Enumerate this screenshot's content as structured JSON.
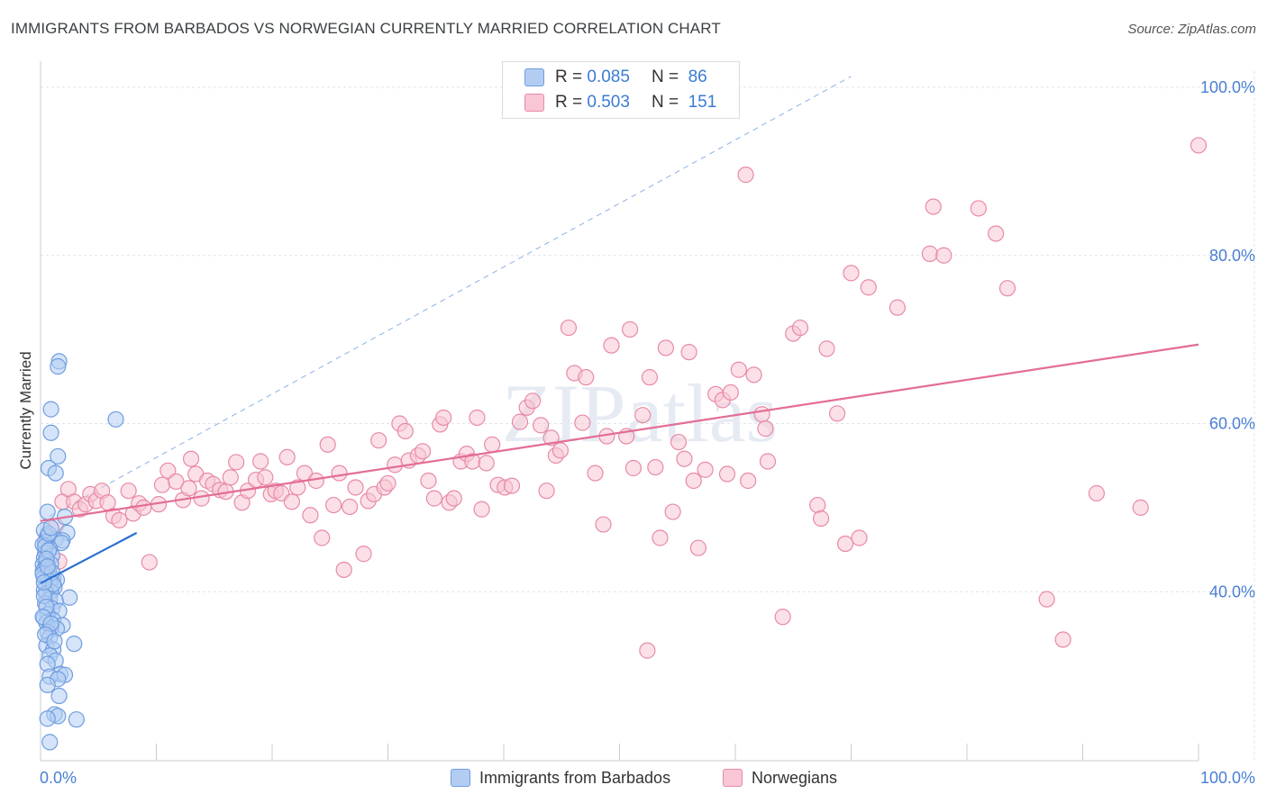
{
  "title": "IMMIGRANTS FROM BARBADOS VS NORWEGIAN CURRENTLY MARRIED CORRELATION CHART",
  "source": "Source: ZipAtlas.com",
  "watermark": "ZIPatlas",
  "legend_top": [
    {
      "r_label": "R =",
      "r_value": "0.085",
      "n_label": "N =",
      "n_value": "86",
      "color_fill": "#b3cdf2",
      "color_stroke": "#6f9de0"
    },
    {
      "r_label": "R =",
      "r_value": "0.503",
      "n_label": "N =",
      "n_value": "151",
      "color_fill": "#f8c6d4",
      "color_stroke": "#e88aa6"
    }
  ],
  "legend_bottom": [
    {
      "label": "Immigrants from Barbados",
      "color_fill": "#b3cdf2",
      "color_stroke": "#6f9de0"
    },
    {
      "label": "Norwegians",
      "color_fill": "#f8c6d4",
      "color_stroke": "#e88aa6"
    }
  ],
  "chart_data": {
    "type": "scatter",
    "title": "IMMIGRANTS FROM BARBADOS VS NORWEGIAN CURRENTLY MARRIED CORRELATION CHART",
    "xlabel": "",
    "ylabel": "Currently Married",
    "xlim": [
      0,
      100
    ],
    "ylim": [
      20,
      100
    ],
    "x_tick_labels": [
      "0.0%",
      "100.0%"
    ],
    "y_tick_labels": [
      "40.0%",
      "60.0%",
      "80.0%",
      "100.0%"
    ],
    "y_ticks": [
      40,
      60,
      80,
      100
    ],
    "grid": true,
    "series": [
      {
        "name": "Immigrants from Barbados",
        "color": "#6f9de0",
        "fill": "#b3cdf2",
        "trend": {
          "x": [
            0,
            8.3
          ],
          "y": [
            41.0,
            47.0
          ],
          "color": "#2a6fd1"
        },
        "points": [
          [
            1.6,
            67.4
          ],
          [
            1.5,
            66.8
          ],
          [
            0.9,
            61.7
          ],
          [
            6.5,
            60.5
          ],
          [
            0.9,
            58.9
          ],
          [
            1.5,
            56.1
          ],
          [
            0.7,
            54.7
          ],
          [
            1.3,
            54.1
          ],
          [
            0.6,
            49.5
          ],
          [
            2.1,
            48.9
          ],
          [
            0.3,
            47.3
          ],
          [
            2.3,
            47.0
          ],
          [
            0.6,
            46.6
          ],
          [
            1.3,
            46.2
          ],
          [
            1.9,
            46.1
          ],
          [
            0.4,
            45.9
          ],
          [
            1.8,
            45.8
          ],
          [
            0.2,
            45.6
          ],
          [
            0.8,
            45.1
          ],
          [
            0.4,
            44.6
          ],
          [
            1.0,
            44.3
          ],
          [
            0.3,
            44.0
          ],
          [
            0.5,
            43.6
          ],
          [
            0.9,
            43.3
          ],
          [
            0.2,
            43.2
          ],
          [
            0.4,
            42.9
          ],
          [
            0.7,
            42.6
          ],
          [
            0.2,
            42.4
          ],
          [
            0.6,
            42.0
          ],
          [
            0.3,
            41.7
          ],
          [
            1.1,
            41.6
          ],
          [
            1.4,
            41.4
          ],
          [
            0.8,
            41.2
          ],
          [
            0.5,
            40.8
          ],
          [
            1.2,
            40.5
          ],
          [
            0.3,
            40.2
          ],
          [
            0.9,
            40.0
          ],
          [
            0.5,
            39.8
          ],
          [
            2.5,
            39.3
          ],
          [
            0.8,
            39.1
          ],
          [
            1.3,
            38.9
          ],
          [
            0.4,
            38.6
          ],
          [
            1.0,
            38.0
          ],
          [
            1.6,
            37.7
          ],
          [
            0.6,
            37.3
          ],
          [
            0.3,
            36.9
          ],
          [
            1.1,
            36.6
          ],
          [
            0.5,
            36.3
          ],
          [
            1.9,
            36.0
          ],
          [
            0.9,
            35.7
          ],
          [
            1.4,
            35.6
          ],
          [
            0.6,
            35.2
          ],
          [
            0.8,
            34.6
          ],
          [
            2.9,
            33.8
          ],
          [
            0.5,
            33.6
          ],
          [
            1.1,
            33.1
          ],
          [
            0.8,
            32.4
          ],
          [
            1.3,
            31.8
          ],
          [
            0.6,
            31.4
          ],
          [
            1.7,
            30.2
          ],
          [
            2.1,
            30.1
          ],
          [
            0.8,
            29.9
          ],
          [
            1.5,
            29.6
          ],
          [
            0.6,
            28.9
          ],
          [
            1.6,
            27.6
          ],
          [
            1.2,
            25.4
          ],
          [
            1.5,
            25.2
          ],
          [
            3.1,
            24.8
          ],
          [
            0.6,
            24.9
          ],
          [
            0.8,
            22.1
          ],
          [
            0.4,
            45.4
          ],
          [
            0.7,
            44.9
          ],
          [
            0.2,
            42.1
          ],
          [
            1.0,
            42.3
          ],
          [
            0.3,
            39.5
          ],
          [
            0.5,
            38.2
          ],
          [
            0.2,
            37.0
          ],
          [
            0.9,
            36.2
          ],
          [
            0.4,
            34.9
          ],
          [
            1.2,
            34.1
          ],
          [
            0.7,
            46.9
          ],
          [
            0.5,
            43.9
          ],
          [
            1.1,
            40.9
          ],
          [
            0.3,
            41.1
          ],
          [
            0.6,
            43.0
          ],
          [
            0.9,
            47.6
          ]
        ]
      },
      {
        "name": "Norwegians",
        "color": "#e88aa6",
        "fill": "#f8c6d4",
        "trend": {
          "x": [
            0,
            100
          ],
          "y": [
            48.4,
            69.4
          ],
          "color": "#e36d96"
        },
        "points": [
          [
            0.5,
            46.4
          ],
          [
            1.3,
            47.8
          ],
          [
            1.6,
            43.6
          ],
          [
            1.9,
            50.7
          ],
          [
            2.4,
            52.2
          ],
          [
            2.9,
            50.7
          ],
          [
            3.4,
            49.8
          ],
          [
            3.9,
            50.4
          ],
          [
            4.3,
            51.6
          ],
          [
            4.8,
            50.8
          ],
          [
            5.3,
            52.0
          ],
          [
            5.8,
            50.6
          ],
          [
            6.3,
            49.0
          ],
          [
            6.8,
            48.5
          ],
          [
            7.6,
            52.0
          ],
          [
            8.0,
            49.3
          ],
          [
            8.5,
            50.5
          ],
          [
            8.9,
            50.0
          ],
          [
            9.4,
            43.5
          ],
          [
            10.2,
            50.4
          ],
          [
            10.5,
            52.7
          ],
          [
            11.0,
            54.4
          ],
          [
            11.7,
            53.1
          ],
          [
            12.3,
            50.9
          ],
          [
            12.8,
            52.3
          ],
          [
            13.0,
            55.8
          ],
          [
            13.4,
            54.0
          ],
          [
            13.9,
            51.1
          ],
          [
            14.4,
            53.2
          ],
          [
            14.9,
            52.8
          ],
          [
            15.5,
            52.1
          ],
          [
            16.0,
            51.9
          ],
          [
            16.4,
            53.6
          ],
          [
            16.9,
            55.4
          ],
          [
            17.4,
            50.6
          ],
          [
            17.9,
            52.0
          ],
          [
            18.6,
            53.3
          ],
          [
            19.0,
            55.5
          ],
          [
            19.4,
            53.6
          ],
          [
            19.9,
            51.6
          ],
          [
            20.3,
            52.0
          ],
          [
            20.8,
            51.7
          ],
          [
            21.3,
            56.0
          ],
          [
            21.7,
            50.7
          ],
          [
            22.2,
            52.4
          ],
          [
            22.8,
            54.1
          ],
          [
            23.3,
            49.1
          ],
          [
            23.8,
            53.2
          ],
          [
            24.3,
            46.4
          ],
          [
            24.8,
            57.5
          ],
          [
            25.3,
            50.3
          ],
          [
            25.8,
            54.1
          ],
          [
            26.2,
            42.6
          ],
          [
            26.7,
            50.1
          ],
          [
            27.2,
            52.4
          ],
          [
            27.9,
            44.5
          ],
          [
            28.3,
            50.8
          ],
          [
            28.8,
            51.6
          ],
          [
            29.2,
            58.0
          ],
          [
            29.7,
            52.4
          ],
          [
            30.0,
            52.9
          ],
          [
            30.6,
            55.1
          ],
          [
            31.0,
            60.0
          ],
          [
            31.5,
            59.1
          ],
          [
            31.8,
            55.6
          ],
          [
            32.6,
            56.2
          ],
          [
            33.0,
            56.7
          ],
          [
            34.0,
            51.1
          ],
          [
            34.5,
            59.9
          ],
          [
            34.8,
            60.7
          ],
          [
            35.3,
            50.6
          ],
          [
            35.7,
            51.1
          ],
          [
            36.3,
            55.5
          ],
          [
            36.8,
            56.4
          ],
          [
            37.3,
            55.5
          ],
          [
            37.7,
            60.7
          ],
          [
            38.1,
            49.8
          ],
          [
            38.5,
            55.3
          ],
          [
            39.0,
            57.5
          ],
          [
            39.5,
            52.7
          ],
          [
            40.1,
            52.4
          ],
          [
            40.7,
            52.6
          ],
          [
            41.4,
            60.2
          ],
          [
            42.0,
            61.9
          ],
          [
            42.5,
            62.7
          ],
          [
            43.2,
            59.8
          ],
          [
            43.7,
            52.0
          ],
          [
            44.1,
            58.3
          ],
          [
            44.5,
            56.2
          ],
          [
            44.9,
            56.8
          ],
          [
            45.6,
            71.4
          ],
          [
            46.1,
            66.0
          ],
          [
            46.8,
            60.1
          ],
          [
            47.1,
            65.5
          ],
          [
            47.9,
            54.1
          ],
          [
            48.6,
            48.0
          ],
          [
            48.9,
            58.5
          ],
          [
            49.3,
            69.3
          ],
          [
            50.6,
            58.5
          ],
          [
            50.9,
            71.2
          ],
          [
            51.2,
            54.7
          ],
          [
            52.4,
            33.0
          ],
          [
            52.6,
            65.5
          ],
          [
            53.1,
            54.8
          ],
          [
            53.5,
            46.4
          ],
          [
            54.0,
            69.0
          ],
          [
            54.6,
            49.5
          ],
          [
            55.1,
            57.8
          ],
          [
            55.6,
            55.8
          ],
          [
            56.0,
            68.5
          ],
          [
            56.4,
            53.2
          ],
          [
            56.8,
            45.2
          ],
          [
            57.4,
            54.5
          ],
          [
            58.3,
            63.5
          ],
          [
            58.9,
            62.8
          ],
          [
            59.3,
            54.0
          ],
          [
            59.6,
            63.7
          ],
          [
            60.3,
            66.4
          ],
          [
            60.9,
            89.6
          ],
          [
            61.1,
            53.2
          ],
          [
            61.6,
            65.8
          ],
          [
            62.3,
            61.1
          ],
          [
            62.6,
            59.4
          ],
          [
            62.8,
            55.5
          ],
          [
            64.1,
            37.0
          ],
          [
            65.0,
            70.7
          ],
          [
            65.6,
            71.4
          ],
          [
            67.1,
            50.3
          ],
          [
            67.4,
            48.7
          ],
          [
            67.9,
            68.9
          ],
          [
            68.8,
            61.2
          ],
          [
            69.5,
            45.7
          ],
          [
            70.0,
            77.9
          ],
          [
            70.7,
            46.4
          ],
          [
            71.5,
            76.2
          ],
          [
            74.0,
            73.8
          ],
          [
            76.8,
            80.2
          ],
          [
            77.1,
            85.8
          ],
          [
            78.0,
            80.0
          ],
          [
            81.0,
            85.6
          ],
          [
            82.5,
            82.6
          ],
          [
            83.5,
            76.1
          ],
          [
            86.9,
            39.1
          ],
          [
            88.3,
            34.3
          ],
          [
            91.2,
            51.7
          ],
          [
            100.0,
            93.1
          ],
          [
            95.0,
            50.0
          ],
          [
            52.0,
            61.0
          ],
          [
            33.5,
            53.2
          ]
        ]
      }
    ],
    "reference_line": {
      "x": [
        0,
        70
      ],
      "y": [
        48.4,
        101.3
      ],
      "style": "dashed",
      "color": "#6f9de0"
    }
  }
}
